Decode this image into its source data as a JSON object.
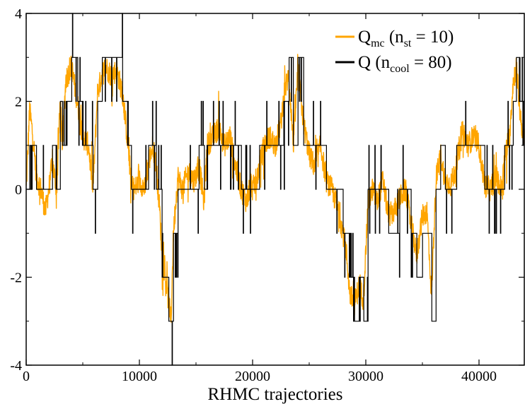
{
  "chart_data": {
    "type": "line",
    "title": "",
    "xlabel": "RHMC trajectories",
    "ylabel": "",
    "xlim": [
      0,
      44000
    ],
    "ylim": [
      -4,
      4
    ],
    "x_ticks": [
      0,
      10000,
      20000,
      30000,
      40000
    ],
    "x_tick_labels": [
      "0",
      "10000",
      "20000",
      "30000",
      "40000"
    ],
    "y_ticks": [
      -4,
      -2,
      0,
      2,
      4
    ],
    "y_tick_labels": [
      "-4",
      "-2",
      "0",
      "2",
      "4"
    ],
    "grid": false,
    "legend_position": "top-right",
    "series": [
      {
        "name": "Q_mc (n_st = 10)",
        "color": "#ffa500",
        "style": "noisy",
        "x": [
          0,
          300,
          600,
          900,
          1300,
          1700,
          2000,
          2300,
          2700,
          3000,
          3200,
          3500,
          4000,
          4500,
          5000,
          5500,
          5900,
          6300,
          6700,
          7000,
          7500,
          8000,
          8500,
          9000,
          9300,
          9600,
          10000,
          10500,
          10800,
          11200,
          11500,
          11800,
          12000,
          12300,
          12600,
          12800,
          13000,
          13400,
          13800,
          14300,
          14800,
          15300,
          15700,
          16000,
          16500,
          17000,
          17500,
          18000,
          18500,
          19000,
          19500,
          19800,
          20000,
          20300,
          20600,
          21000,
          21500,
          22000,
          22500,
          22800,
          23200,
          23600,
          24000,
          24500,
          25000,
          25500,
          26000,
          26500,
          27000,
          27500,
          28000,
          28300,
          28600,
          29000,
          29400,
          29800,
          30200,
          30600,
          31000,
          31500,
          32000,
          32500,
          33000,
          33500,
          34000,
          34500,
          35000,
          35400,
          35800,
          36200,
          36600,
          37000,
          37500,
          38000,
          38500,
          39000,
          39500,
          40000,
          40500,
          41000,
          41500,
          42000,
          42300,
          42700,
          43000,
          43300,
          43600,
          44000
        ],
        "values": [
          0,
          1.8,
          1.2,
          0.3,
          0,
          -0.5,
          0,
          0.6,
          0,
          2.0,
          1.0,
          2.5,
          2.8,
          2.0,
          1.2,
          1.0,
          0,
          2.2,
          2.6,
          2.8,
          2.6,
          2.7,
          2.2,
          1.0,
          0.1,
          0,
          0.2,
          0,
          0.6,
          1.0,
          0.5,
          -0.5,
          -1.5,
          -2.0,
          -2.6,
          -3.0,
          -1.0,
          0.3,
          0,
          0.4,
          0.2,
          0.5,
          -0.3,
          1.0,
          1.2,
          1.4,
          1.0,
          1.2,
          0.5,
          0,
          -0.3,
          0.2,
          0,
          0.2,
          0.5,
          1.0,
          1.2,
          1.0,
          1.5,
          2.2,
          2.6,
          1.0,
          2.7,
          1.5,
          0.8,
          0.5,
          1.0,
          0.2,
          0,
          -0.4,
          -1.0,
          -1.5,
          -2.4,
          -2.6,
          -2.2,
          -2.5,
          -0.3,
          0,
          -0.3,
          0.2,
          -0.6,
          -0.5,
          -0.2,
          0,
          -0.8,
          -1.5,
          -0.6,
          -0.5,
          -2.4,
          0.2,
          0.8,
          0.2,
          0.1,
          0.5,
          1.4,
          1.0,
          1.2,
          1.0,
          0.1,
          0,
          0.3,
          0,
          0.8,
          1.2,
          2.4,
          2.8,
          1.8,
          1.0
        ]
      },
      {
        "name": "Q (n_cool = 80)",
        "color": "#000000",
        "style": "step",
        "x": [
          0,
          300,
          600,
          900,
          1300,
          1700,
          2000,
          2300,
          2700,
          3000,
          3200,
          3500,
          4000,
          4500,
          5000,
          5500,
          5900,
          6300,
          6700,
          7000,
          7500,
          8000,
          8500,
          9000,
          9300,
          9600,
          10000,
          10500,
          10800,
          11200,
          11500,
          11800,
          12000,
          12300,
          12600,
          12800,
          13000,
          13400,
          13800,
          14300,
          14800,
          15300,
          15700,
          16000,
          16500,
          17000,
          17500,
          18000,
          18500,
          19000,
          19500,
          19800,
          20000,
          20300,
          20600,
          21000,
          21500,
          22000,
          22500,
          22800,
          23200,
          23600,
          24000,
          24500,
          25000,
          25500,
          26000,
          26500,
          27000,
          27500,
          28000,
          28300,
          28600,
          29000,
          29400,
          29800,
          30200,
          30600,
          31000,
          31500,
          32000,
          32500,
          33000,
          33500,
          34000,
          34500,
          35000,
          35400,
          35800,
          36200,
          36600,
          37000,
          37500,
          38000,
          38500,
          39000,
          39500,
          40000,
          40500,
          41000,
          41500,
          42000,
          42300,
          42700,
          43000,
          43300,
          43600,
          44000
        ],
        "values": [
          0,
          1,
          1,
          0,
          0,
          0,
          0,
          1,
          0,
          2,
          1,
          2,
          3,
          2,
          1,
          1,
          0,
          2,
          3,
          3,
          3,
          3,
          2,
          1,
          0,
          0,
          0,
          0,
          1,
          1,
          0,
          0,
          -2,
          -2,
          -3,
          -3,
          -1,
          0,
          0,
          0,
          0,
          1,
          0,
          1,
          1,
          1,
          1,
          1,
          1,
          0,
          0,
          0,
          0,
          0,
          1,
          1,
          1,
          1,
          1,
          2,
          3,
          1,
          3,
          1,
          1,
          1,
          1,
          0,
          0,
          0,
          -1,
          -1,
          -2,
          -3,
          -2,
          -3,
          0,
          0,
          0,
          0,
          -1,
          -1,
          0,
          0,
          -1,
          -2,
          -1,
          -1,
          -3,
          0,
          1,
          0,
          0,
          1,
          1,
          1,
          1,
          1,
          0,
          0,
          0,
          0,
          1,
          1,
          2,
          3,
          2,
          1
        ]
      }
    ]
  },
  "legend": {
    "items": [
      {
        "main": "Q",
        "sub": "mc",
        "rest1": " (n",
        "sub2": "st",
        "rest2": " = 10)",
        "color": "#ffa500"
      },
      {
        "main": "Q",
        "sub": "",
        "rest1": "  (n",
        "sub2": "cool",
        "rest2": " = 80)",
        "color": "#000000"
      }
    ]
  }
}
